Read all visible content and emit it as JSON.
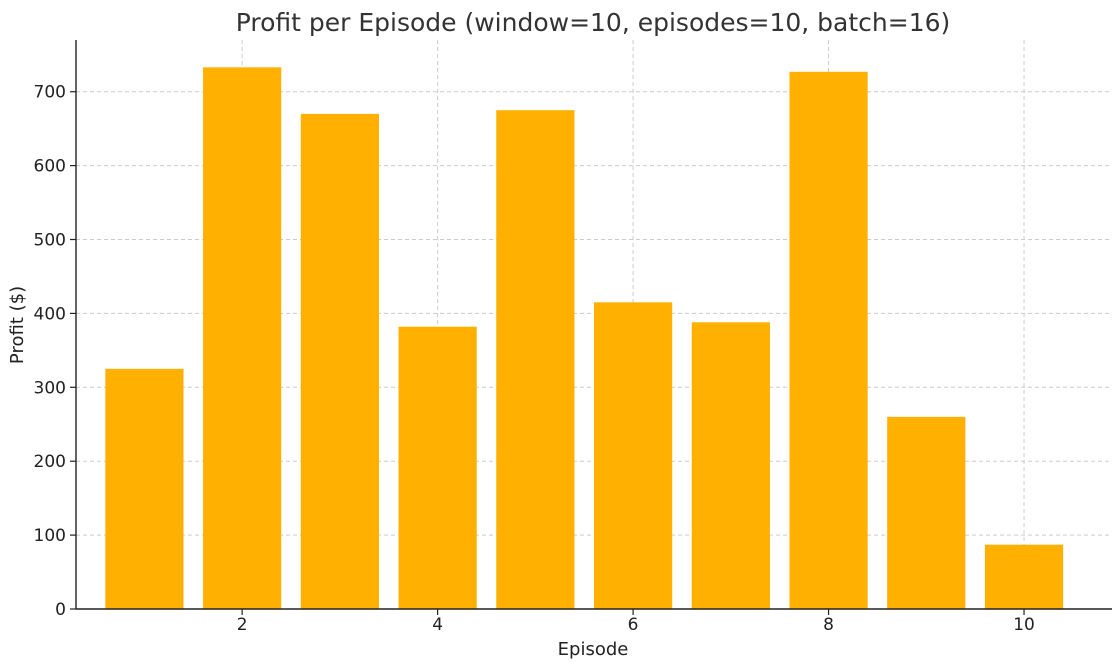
{
  "chart_data": {
    "type": "bar",
    "title": "Profit per Episode (window=10, episodes=10, batch=16)",
    "xlabel": "Episode",
    "ylabel": "Profit ($)",
    "categories": [
      1,
      2,
      3,
      4,
      5,
      6,
      7,
      8,
      9,
      10
    ],
    "values": [
      325,
      733,
      670,
      382,
      675,
      415,
      388,
      727,
      260,
      87
    ],
    "x_ticks": [
      2,
      4,
      6,
      8,
      10
    ],
    "y_ticks": [
      0,
      100,
      200,
      300,
      400,
      500,
      600,
      700
    ],
    "xlim": [
      0.3,
      10.9
    ],
    "ylim": [
      0,
      770
    ],
    "grid": true,
    "legend": "none",
    "bar_color": "#FFB000"
  }
}
